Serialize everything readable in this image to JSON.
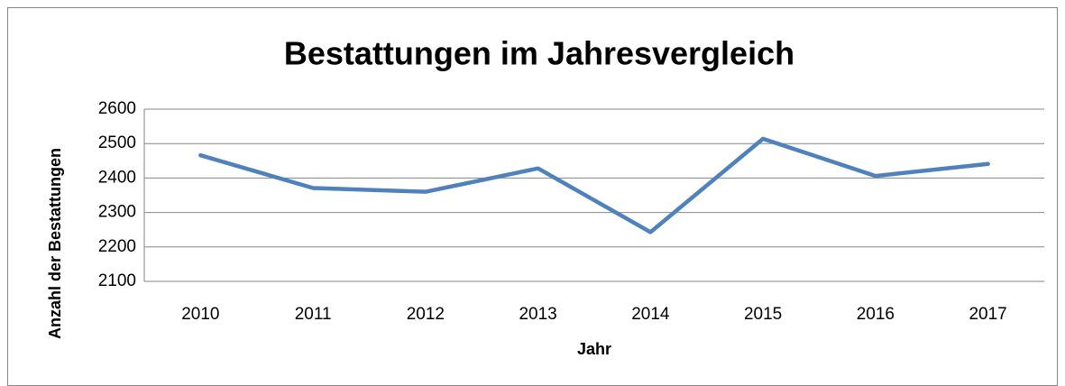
{
  "chart_data": {
    "type": "line",
    "title": "Bestattungen im Jahresvergleich",
    "x_label": "Jahr",
    "y_label": "Anzahl der Bestattungen",
    "categories": [
      "2010",
      "2011",
      "2012",
      "2013",
      "2014",
      "2015",
      "2016",
      "2017"
    ],
    "series": [
      {
        "name": "Bestattungen",
        "color": "#4f81bd",
        "values": [
          2466,
          2371,
          2360,
          2428,
          2243,
          2514,
          2406,
          2441
        ]
      }
    ],
    "ylim": [
      2100,
      2600
    ],
    "yticks": [
      2100,
      2200,
      2300,
      2400,
      2500,
      2600
    ],
    "grid": true
  }
}
